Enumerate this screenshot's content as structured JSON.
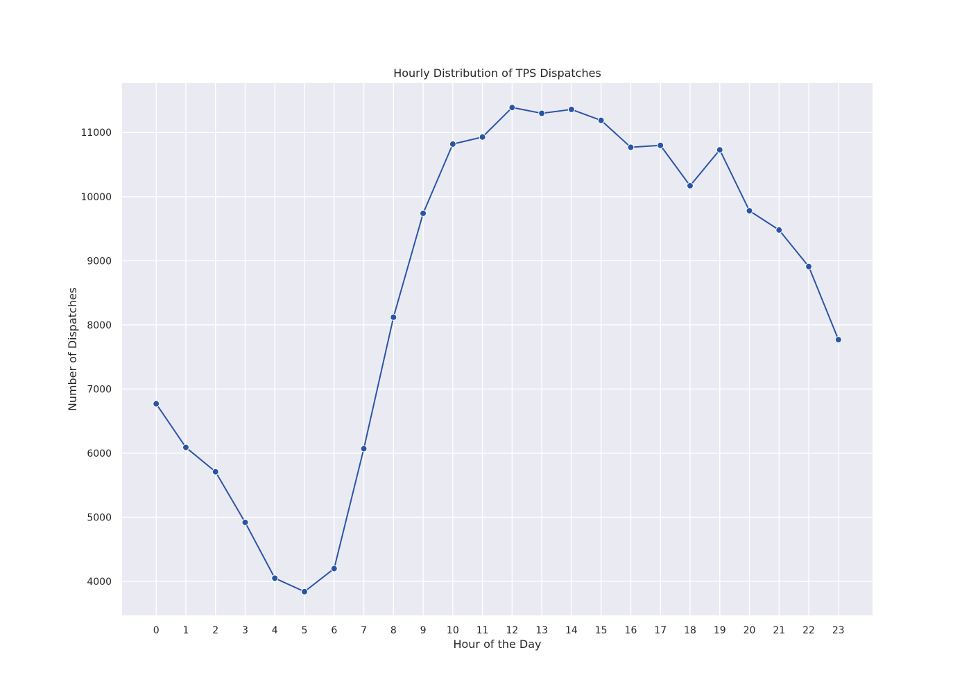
{
  "chart_data": {
    "type": "line",
    "title": "Hourly Distribution of TPS Dispatches",
    "xlabel": "Hour of the Day",
    "ylabel": "Number of Dispatches",
    "x": [
      0,
      1,
      2,
      3,
      4,
      5,
      6,
      7,
      8,
      9,
      10,
      11,
      12,
      13,
      14,
      15,
      16,
      17,
      18,
      19,
      20,
      21,
      22,
      23
    ],
    "series": [
      {
        "values": [
          6770,
          6090,
          5710,
          4920,
          4050,
          3840,
          4200,
          6070,
          8120,
          9740,
          10820,
          10930,
          11390,
          11300,
          11360,
          11190,
          10770,
          10800,
          10170,
          10730,
          9780,
          9480,
          8910,
          7770
        ],
        "color": "#2a55a4"
      }
    ],
    "x_ticks": [
      "0",
      "1",
      "2",
      "3",
      "4",
      "5",
      "6",
      "7",
      "8",
      "9",
      "10",
      "11",
      "12",
      "13",
      "14",
      "15",
      "16",
      "17",
      "18",
      "19",
      "20",
      "21",
      "22",
      "23"
    ],
    "y_ticks": [
      4000,
      5000,
      6000,
      7000,
      8000,
      9000,
      10000,
      11000
    ],
    "xlim": [
      -1.15,
      24.15
    ],
    "ylim": [
      3470,
      11770
    ],
    "grid": true,
    "marker": "circle",
    "background_color": "#eaeaf2"
  }
}
